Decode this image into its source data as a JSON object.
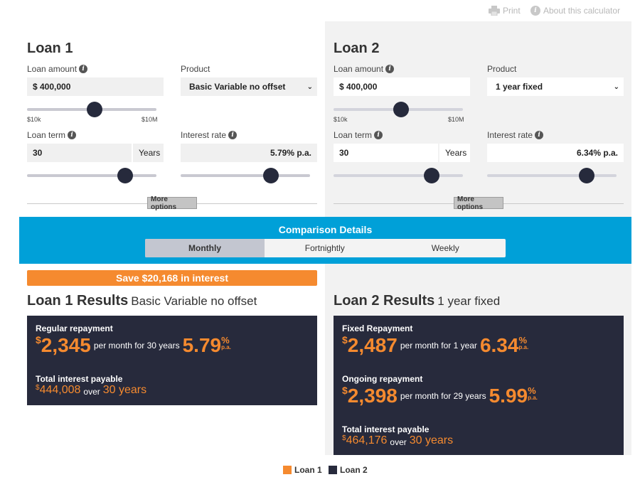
{
  "toplinks": {
    "print": "Print",
    "about": "About this calculator"
  },
  "colors": {
    "orange": "#f58a2f",
    "navy": "#272a3c",
    "blue": "#00a0d8"
  },
  "loan1": {
    "title": "Loan 1",
    "amount_label": "Loan amount",
    "amount_value": "$  400,000",
    "amount_min": "$10k",
    "amount_max": "$10M",
    "product_label": "Product",
    "product_value": "Basic Variable no offset",
    "term_label": "Loan term",
    "term_value": "30",
    "term_unit": "Years",
    "rate_label": "Interest rate",
    "rate_value": "5.79% p.a.",
    "more_options": "More options"
  },
  "loan2": {
    "title": "Loan 2",
    "amount_label": "Loan amount",
    "amount_value": "$  400,000",
    "amount_min": "$10k",
    "amount_max": "$10M",
    "product_label": "Product",
    "product_value": "1 year fixed",
    "term_label": "Loan term",
    "term_value": "30",
    "term_unit": "Years",
    "rate_label": "Interest rate",
    "rate_value": "6.34% p.a.",
    "more_options": "More options"
  },
  "comparison": {
    "title": "Comparison Details",
    "tabs": [
      "Monthly",
      "Fortnightly",
      "Weekly"
    ],
    "active_tab": "Monthly"
  },
  "save_banner": "Save $20,168 in interest",
  "results1": {
    "title": "Loan 1 Results",
    "product": "Basic Variable no offset",
    "repay_label": "Regular repayment",
    "currency": "$",
    "repay_value": "2,345",
    "repay_desc": "per month for 30 years",
    "rate": "5.79",
    "pct": "%",
    "pa": "p.a.",
    "total_label": "Total interest payable",
    "total_value": "444,008",
    "over": "over",
    "total_years": "30 years"
  },
  "results2": {
    "title": "Loan 2 Results",
    "product": "1 year fixed",
    "fixed_label": "Fixed Repayment",
    "currency": "$",
    "fixed_value": "2,487",
    "fixed_desc": "per month for 1 year",
    "fixed_rate": "6.34",
    "ongoing_label": "Ongoing repayment",
    "ongoing_value": "2,398",
    "ongoing_desc": "per month for 29 years",
    "ongoing_rate": "5.99",
    "pct": "%",
    "pa": "p.a.",
    "total_label": "Total interest payable",
    "total_value": "464,176",
    "over": "over",
    "total_years": "30 years"
  },
  "legend": {
    "loan1": "Loan 1",
    "loan2": "Loan 2"
  }
}
